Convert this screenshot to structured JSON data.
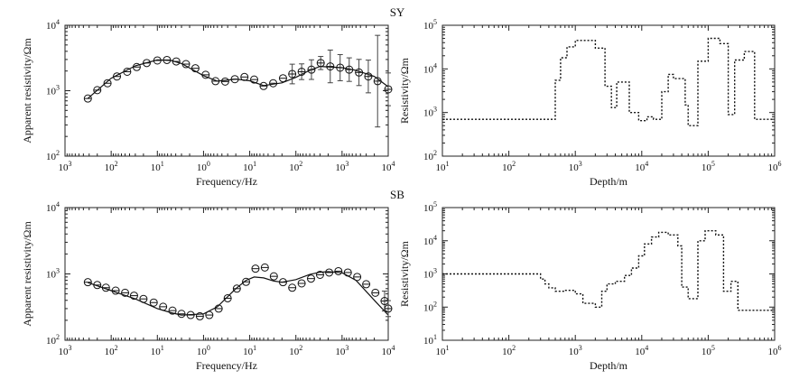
{
  "chart_data": [
    {
      "id": "p1",
      "type": "scatter",
      "panel_label": "",
      "xlabel": "Frequency/Hz",
      "ylabel": "Apparent resistivity/Ωm",
      "x_scale": "log",
      "x_reversed": true,
      "xlim": [
        1000,
        0.0001
      ],
      "y_scale": "log",
      "ylim": [
        100,
        10000
      ],
      "x_ticks": [
        1000,
        100,
        10,
        1,
        0.1,
        0.01,
        0.001,
        0.0001
      ],
      "y_ticks": [
        100,
        1000,
        10000
      ],
      "observed": {
        "x": [
          320,
          200,
          120,
          75,
          45,
          28,
          17,
          10,
          6.2,
          3.9,
          2.4,
          1.5,
          0.9,
          0.55,
          0.34,
          0.21,
          0.13,
          0.08,
          0.05,
          0.031,
          0.019,
          0.012,
          0.0075,
          0.0046,
          0.0029,
          0.0018,
          0.0011,
          0.0007,
          0.00043,
          0.00027,
          0.00017,
          0.0001
        ],
        "y": [
          760,
          1020,
          1300,
          1650,
          1950,
          2300,
          2650,
          2900,
          2950,
          2800,
          2550,
          2200,
          1750,
          1400,
          1380,
          1500,
          1620,
          1480,
          1180,
          1300,
          1550,
          1800,
          1950,
          2100,
          2650,
          2350,
          2250,
          2100,
          1900,
          1650,
          1400,
          1050
        ],
        "err": [
          0,
          0,
          0,
          0,
          0,
          0,
          0,
          0,
          0,
          0,
          0,
          0,
          0,
          0,
          0,
          0,
          0,
          0,
          0,
          0,
          0,
          0.15,
          0.12,
          0.15,
          0.1,
          0.25,
          0.2,
          0.18,
          0.2,
          0.25,
          0.7,
          0.25
        ]
      },
      "model": {
        "x": [
          320,
          100,
          30,
          10,
          5,
          3,
          1,
          0.5,
          0.2,
          0.1,
          0.05,
          0.02,
          0.01,
          0.005,
          0.003,
          0.001,
          0.0005,
          0.0002,
          0.0001
        ],
        "y": [
          760,
          1550,
          2400,
          2950,
          2900,
          2600,
          1700,
          1400,
          1500,
          1420,
          1200,
          1320,
          1600,
          2050,
          2350,
          2250,
          2050,
          1650,
          1150
        ]
      }
    },
    {
      "id": "p2",
      "type": "line",
      "panel_label": "SY",
      "xlabel": "Depth/m",
      "ylabel": "Resistivity/Ωm",
      "x_scale": "log",
      "xlim": [
        10,
        1000000
      ],
      "y_scale": "log",
      "ylim": [
        100,
        100000
      ],
      "x_ticks": [
        10,
        100,
        1000,
        10000,
        100000,
        1000000
      ],
      "y_ticks": [
        100,
        1000,
        10000,
        100000
      ],
      "model": {
        "x": [
          10,
          500,
          500,
          600,
          600,
          750,
          750,
          1000,
          1000,
          2000,
          2000,
          2800,
          2800,
          3500,
          3500,
          4200,
          4200,
          6500,
          6500,
          9000,
          9000,
          12000,
          12000,
          15000,
          15000,
          20000,
          20000,
          25000,
          25000,
          30000,
          30000,
          45000,
          45000,
          50000,
          50000,
          70000,
          70000,
          100000,
          100000,
          150000,
          150000,
          200000,
          200000,
          250000,
          250000,
          350000,
          350000,
          500000,
          500000,
          1000000
        ],
        "y": [
          700,
          700,
          5500,
          5500,
          18000,
          18000,
          32000,
          32000,
          45000,
          45000,
          30000,
          30000,
          4000,
          4000,
          1300,
          1300,
          5000,
          5000,
          1000,
          1000,
          650,
          650,
          800,
          800,
          700,
          700,
          3000,
          3000,
          7500,
          7500,
          6000,
          6000,
          1500,
          1500,
          500,
          500,
          15000,
          15000,
          50000,
          50000,
          38000,
          38000,
          900,
          900,
          16000,
          16000,
          25000,
          25000,
          700,
          700
        ]
      }
    },
    {
      "id": "p3",
      "type": "scatter",
      "panel_label": "SB",
      "xlabel": "Frequency/Hz",
      "ylabel": "Apparent resistivity/Ωm",
      "x_scale": "log",
      "x_reversed": true,
      "xlim": [
        1000,
        0.0001
      ],
      "y_scale": "log",
      "ylim": [
        100,
        10000
      ],
      "x_ticks": [
        1000,
        100,
        10,
        1,
        0.1,
        0.01,
        0.001,
        0.0001
      ],
      "y_ticks": [
        100,
        1000,
        10000
      ],
      "observed": {
        "x": [
          320,
          200,
          130,
          80,
          50,
          32,
          20,
          12,
          7.5,
          4.7,
          3,
          1.9,
          1.2,
          0.75,
          0.47,
          0.3,
          0.19,
          0.12,
          0.075,
          0.047,
          0.03,
          0.019,
          0.012,
          0.0075,
          0.0047,
          0.003,
          0.0019,
          0.0012,
          0.00075,
          0.00047,
          0.0003,
          0.00019,
          0.00012,
          0.0001
        ],
        "y": [
          750,
          680,
          620,
          560,
          520,
          470,
          420,
          370,
          320,
          280,
          250,
          240,
          230,
          240,
          300,
          430,
          600,
          760,
          1200,
          1250,
          920,
          750,
          620,
          720,
          850,
          970,
          1050,
          1100,
          1050,
          900,
          700,
          520,
          390,
          300
        ],
        "err": [
          0,
          0,
          0,
          0,
          0,
          0,
          0,
          0,
          0,
          0,
          0,
          0,
          0,
          0,
          0,
          0,
          0,
          0,
          0,
          0,
          0,
          0,
          0,
          0,
          0,
          0,
          0,
          0,
          0,
          0,
          0,
          0,
          0.15,
          0.12
        ]
      },
      "model": {
        "x": [
          320,
          100,
          30,
          10,
          5,
          3,
          1,
          0.5,
          0.2,
          0.12,
          0.08,
          0.05,
          0.03,
          0.02,
          0.01,
          0.005,
          0.003,
          0.002,
          0.001,
          0.0005,
          0.0002,
          0.0001
        ],
        "y": [
          740,
          560,
          420,
          300,
          260,
          240,
          250,
          320,
          600,
          800,
          900,
          870,
          780,
          750,
          820,
          980,
          1060,
          1080,
          1040,
          800,
          400,
          240
        ]
      }
    },
    {
      "id": "p4",
      "type": "line",
      "panel_label": "",
      "xlabel": "Depth/m",
      "ylabel": "Resistivity/Ωm",
      "x_scale": "log",
      "xlim": [
        10,
        1000000
      ],
      "y_scale": "log",
      "ylim": [
        10,
        100000
      ],
      "x_ticks": [
        10,
        100,
        1000,
        10000,
        100000,
        1000000
      ],
      "y_ticks": [
        10,
        100,
        1000,
        10000,
        100000
      ],
      "model": {
        "x": [
          10,
          300,
          300,
          350,
          350,
          400,
          400,
          500,
          500,
          700,
          700,
          1000,
          1000,
          1300,
          1300,
          2000,
          2000,
          2500,
          2500,
          3000,
          3000,
          4000,
          4000,
          5500,
          5500,
          7000,
          7000,
          9000,
          9000,
          11000,
          11000,
          14000,
          14000,
          18000,
          18000,
          25000,
          25000,
          35000,
          35000,
          40000,
          40000,
          50000,
          50000,
          70000,
          70000,
          90000,
          90000,
          130000,
          130000,
          170000,
          170000,
          220000,
          220000,
          280000,
          280000,
          1000000
        ],
        "y": [
          1000,
          1000,
          700,
          700,
          500,
          500,
          380,
          380,
          300,
          300,
          320,
          320,
          250,
          250,
          130,
          130,
          100,
          100,
          300,
          300,
          500,
          500,
          600,
          600,
          900,
          900,
          1500,
          1500,
          3500,
          3500,
          8000,
          8000,
          13000,
          13000,
          18000,
          18000,
          15000,
          15000,
          7000,
          7000,
          400,
          400,
          180,
          180,
          10000,
          10000,
          20000,
          20000,
          15000,
          15000,
          300,
          300,
          600,
          600,
          80,
          80
        ]
      }
    }
  ]
}
